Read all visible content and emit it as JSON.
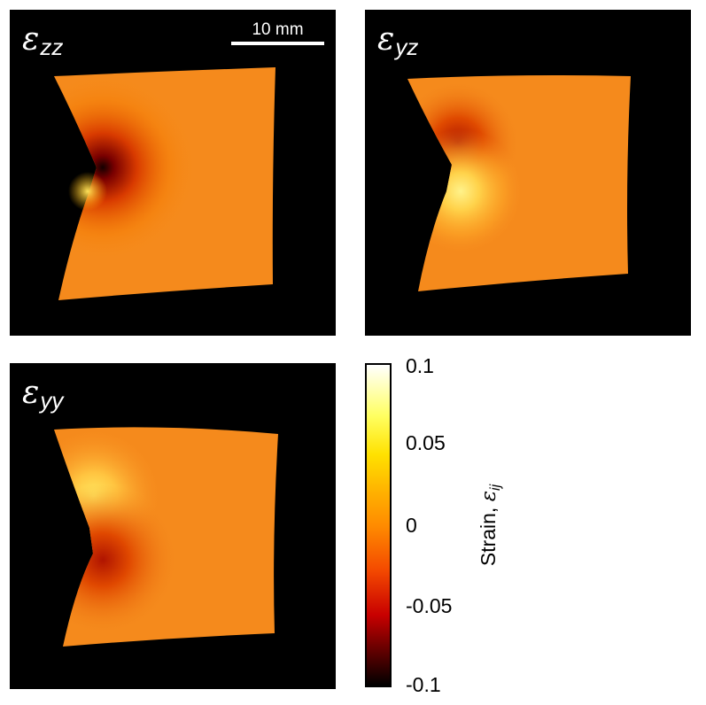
{
  "panels": [
    {
      "id": "zz",
      "symbol": "ε",
      "subscript": "zz"
    },
    {
      "id": "yz",
      "symbol": "ε",
      "subscript": "yz"
    },
    {
      "id": "yy",
      "symbol": "ε",
      "subscript": "yy"
    }
  ],
  "scalebar": {
    "label": "10 mm"
  },
  "colorbar": {
    "ticks": [
      "0.1",
      "0.05",
      "0",
      "-0.05",
      "-0.1"
    ],
    "title_text": "Strain, ",
    "title_symbol": "ε",
    "title_subscript": "ij",
    "range": [
      -0.1,
      0.1
    ]
  },
  "colors": {
    "colormap_low": "#000000",
    "colormap_mid": "#ff8c00",
    "colormap_high": "#ffffff",
    "background": "#000000"
  }
}
